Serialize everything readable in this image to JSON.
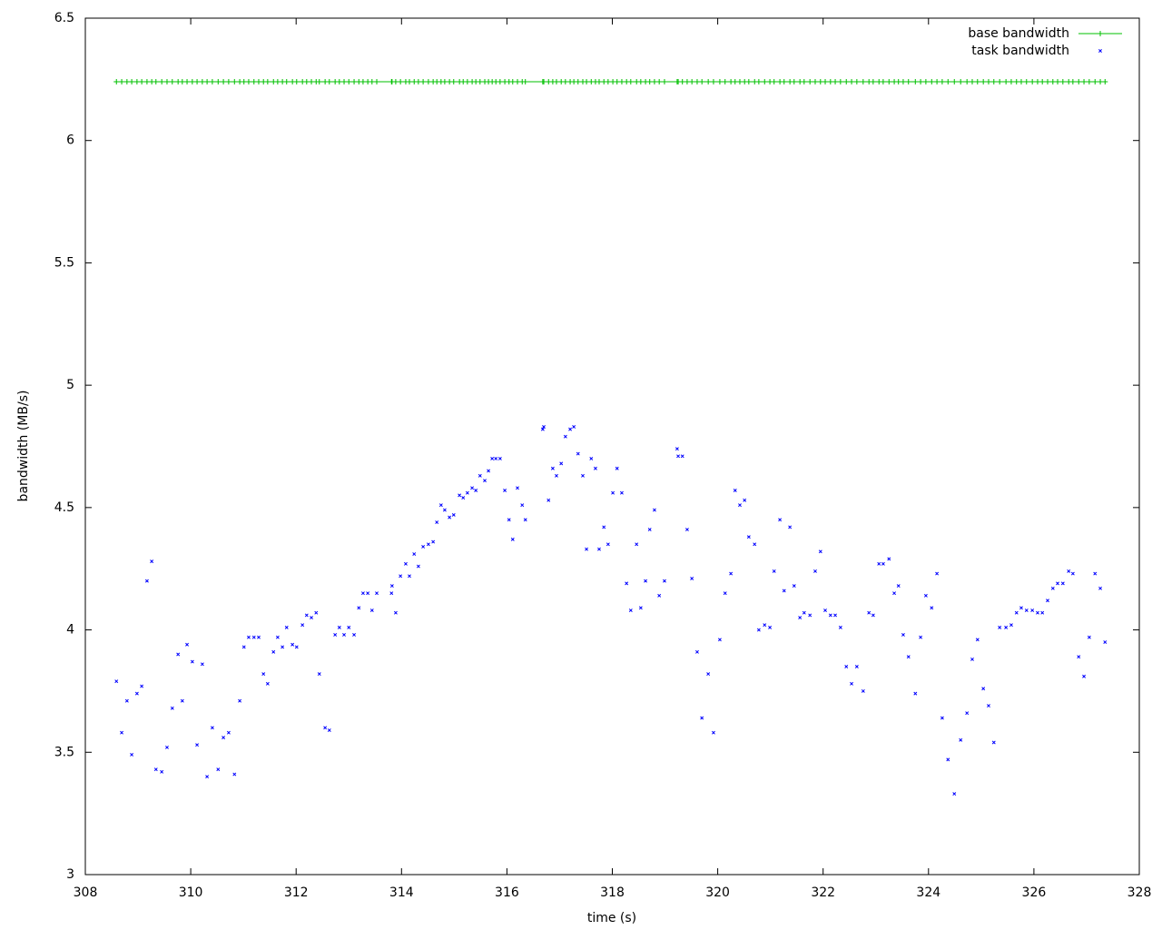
{
  "chart_data": {
    "type": "scatter",
    "xlabel": "time (s)",
    "ylabel": "bandwidth (MB/s)",
    "xlim": [
      308,
      328
    ],
    "xticks": [
      308,
      310,
      312,
      314,
      316,
      318,
      320,
      322,
      324,
      326,
      328
    ],
    "ylim": [
      3,
      6.5
    ],
    "yticks": [
      3,
      3.5,
      4,
      4.5,
      5,
      5.5,
      6,
      6.5
    ],
    "grid": false,
    "legend": "top-right",
    "x": [
      308.59,
      308.69,
      308.79,
      308.88,
      308.98,
      309.07,
      309.17,
      309.26,
      309.34,
      309.45,
      309.55,
      309.65,
      309.76,
      309.84,
      309.93,
      310.03,
      310.12,
      310.22,
      310.31,
      310.41,
      310.52,
      310.62,
      310.72,
      310.83,
      310.93,
      311.01,
      311.1,
      311.2,
      311.29,
      311.38,
      311.46,
      311.57,
      311.65,
      311.74,
      311.82,
      311.93,
      312.01,
      312.12,
      312.2,
      312.29,
      312.38,
      312.44,
      312.55,
      312.63,
      312.74,
      312.82,
      312.91,
      313.0,
      313.1,
      313.19,
      313.27,
      313.36,
      313.44,
      313.53,
      313.81,
      313.82,
      313.89,
      313.98,
      314.08,
      314.15,
      314.24,
      314.32,
      314.41,
      314.51,
      314.6,
      314.67,
      314.75,
      314.82,
      314.91,
      314.99,
      315.1,
      315.17,
      315.25,
      315.34,
      315.41,
      315.49,
      315.58,
      315.65,
      315.72,
      315.79,
      315.87,
      315.96,
      316.04,
      316.11,
      316.2,
      316.29,
      316.35,
      316.68,
      316.7,
      316.79,
      316.87,
      316.94,
      317.03,
      317.11,
      317.2,
      317.27,
      317.35,
      317.44,
      317.51,
      317.6,
      317.68,
      317.75,
      317.84,
      317.92,
      318.01,
      318.09,
      318.18,
      318.27,
      318.35,
      318.46,
      318.54,
      318.63,
      318.71,
      318.8,
      318.89,
      318.99,
      319.23,
      319.25,
      319.33,
      319.42,
      319.51,
      319.61,
      319.7,
      319.82,
      319.92,
      320.04,
      320.14,
      320.25,
      320.33,
      320.42,
      320.51,
      320.59,
      320.7,
      320.78,
      320.89,
      320.99,
      321.07,
      321.18,
      321.26,
      321.37,
      321.45,
      321.56,
      321.64,
      321.75,
      321.85,
      321.95,
      322.04,
      322.14,
      322.23,
      322.33,
      322.44,
      322.54,
      322.64,
      322.76,
      322.87,
      322.95,
      323.06,
      323.14,
      323.25,
      323.35,
      323.43,
      323.52,
      323.62,
      323.75,
      323.85,
      323.95,
      324.06,
      324.16,
      324.26,
      324.37,
      324.49,
      324.61,
      324.73,
      324.83,
      324.93,
      325.04,
      325.14,
      325.24,
      325.35,
      325.47,
      325.57,
      325.67,
      325.76,
      325.86,
      325.97,
      326.07,
      326.16,
      326.26,
      326.36,
      326.45,
      326.55,
      326.66,
      326.74,
      326.85,
      326.95,
      327.05,
      327.16,
      327.26,
      327.35
    ],
    "series": [
      {
        "name": "base bandwidth",
        "color": "#00c000",
        "style": "linespoints",
        "values": [
          6.24,
          6.24,
          6.24,
          6.24,
          6.24,
          6.24,
          6.24,
          6.24,
          6.24,
          6.24,
          6.24,
          6.24,
          6.24,
          6.24,
          6.24,
          6.24,
          6.24,
          6.24,
          6.24,
          6.24,
          6.24,
          6.24,
          6.24,
          6.24,
          6.24,
          6.24,
          6.24,
          6.24,
          6.24,
          6.24,
          6.24,
          6.24,
          6.24,
          6.24,
          6.24,
          6.24,
          6.24,
          6.24,
          6.24,
          6.24,
          6.24,
          6.24,
          6.24,
          6.24,
          6.24,
          6.24,
          6.24,
          6.24,
          6.24,
          6.24,
          6.24,
          6.24,
          6.24,
          6.24,
          6.24,
          6.24,
          6.24,
          6.24,
          6.24,
          6.24,
          6.24,
          6.24,
          6.24,
          6.24,
          6.24,
          6.24,
          6.24,
          6.24,
          6.24,
          6.24,
          6.24,
          6.24,
          6.24,
          6.24,
          6.24,
          6.24,
          6.24,
          6.24,
          6.24,
          6.24,
          6.24,
          6.24,
          6.24,
          6.24,
          6.24,
          6.24,
          6.24,
          6.24,
          6.24,
          6.24,
          6.24,
          6.24,
          6.24,
          6.24,
          6.24,
          6.24,
          6.24,
          6.24,
          6.24,
          6.24,
          6.24,
          6.24,
          6.24,
          6.24,
          6.24,
          6.24,
          6.24,
          6.24,
          6.24,
          6.24,
          6.24,
          6.24,
          6.24,
          6.24,
          6.24,
          6.24,
          6.24,
          6.24,
          6.24,
          6.24,
          6.24,
          6.24,
          6.24,
          6.24,
          6.24,
          6.24,
          6.24,
          6.24,
          6.24,
          6.24,
          6.24,
          6.24,
          6.24,
          6.24,
          6.24,
          6.24,
          6.24,
          6.24,
          6.24,
          6.24,
          6.24,
          6.24,
          6.24,
          6.24,
          6.24,
          6.24,
          6.24,
          6.24,
          6.24,
          6.24,
          6.24,
          6.24,
          6.24,
          6.24,
          6.24,
          6.24,
          6.24,
          6.24,
          6.24,
          6.24,
          6.24,
          6.24,
          6.24,
          6.24,
          6.24,
          6.24,
          6.24,
          6.24,
          6.24,
          6.24,
          6.24,
          6.24,
          6.24,
          6.24,
          6.24,
          6.24,
          6.24,
          6.24,
          6.24,
          6.24,
          6.24,
          6.24,
          6.24,
          6.24,
          6.24,
          6.24,
          6.24,
          6.24,
          6.24,
          6.24,
          6.24,
          6.24,
          6.24,
          6.24,
          6.24,
          6.24,
          6.24,
          6.24,
          6.24
        ]
      },
      {
        "name": "task bandwidth",
        "color": "#0000ff",
        "style": "points",
        "values": [
          3.79,
          3.58,
          3.71,
          3.49,
          3.74,
          3.77,
          4.2,
          4.28,
          3.43,
          3.42,
          3.52,
          3.68,
          3.9,
          3.71,
          3.94,
          3.87,
          3.53,
          3.86,
          3.4,
          3.6,
          3.43,
          3.56,
          3.58,
          3.41,
          3.71,
          3.93,
          3.97,
          3.97,
          3.97,
          3.82,
          3.78,
          3.91,
          3.97,
          3.93,
          4.01,
          3.94,
          3.93,
          4.02,
          4.06,
          4.05,
          4.07,
          3.82,
          3.6,
          3.59,
          3.98,
          4.01,
          3.98,
          4.01,
          3.98,
          4.09,
          4.15,
          4.15,
          4.08,
          4.15,
          4.15,
          4.18,
          4.07,
          4.22,
          4.27,
          4.22,
          4.31,
          4.26,
          4.34,
          4.35,
          4.36,
          4.44,
          4.51,
          4.49,
          4.46,
          4.47,
          4.55,
          4.54,
          4.56,
          4.58,
          4.57,
          4.63,
          4.61,
          4.65,
          4.7,
          4.7,
          4.7,
          4.57,
          4.45,
          4.37,
          4.58,
          4.51,
          4.45,
          4.82,
          4.83,
          4.53,
          4.66,
          4.63,
          4.68,
          4.79,
          4.82,
          4.83,
          4.72,
          4.63,
          4.33,
          4.7,
          4.66,
          4.33,
          4.42,
          4.35,
          4.56,
          4.66,
          4.56,
          4.19,
          4.08,
          4.35,
          4.09,
          4.2,
          4.41,
          4.49,
          4.14,
          4.2,
          4.74,
          4.71,
          4.71,
          4.41,
          4.21,
          3.91,
          3.64,
          3.82,
          3.58,
          3.96,
          4.15,
          4.23,
          4.57,
          4.51,
          4.53,
          4.38,
          4.35,
          4.0,
          4.02,
          4.01,
          4.24,
          4.45,
          4.16,
          4.42,
          4.18,
          4.05,
          4.07,
          4.06,
          4.24,
          4.32,
          4.08,
          4.06,
          4.06,
          4.01,
          3.85,
          3.78,
          3.85,
          3.75,
          4.07,
          4.06,
          4.27,
          4.27,
          4.29,
          4.15,
          4.18,
          3.98,
          3.89,
          3.74,
          3.97,
          4.14,
          4.09,
          4.23,
          3.64,
          3.47,
          3.33,
          3.55,
          3.66,
          3.88,
          3.96,
          3.76,
          3.69,
          3.54,
          4.01,
          4.01,
          4.02,
          4.07,
          4.09,
          4.08,
          4.08,
          4.07,
          4.07,
          4.12,
          4.17,
          4.19,
          4.19,
          4.24,
          4.23,
          3.89,
          3.81,
          3.97,
          4.23,
          4.17,
          3.95
        ]
      }
    ]
  }
}
